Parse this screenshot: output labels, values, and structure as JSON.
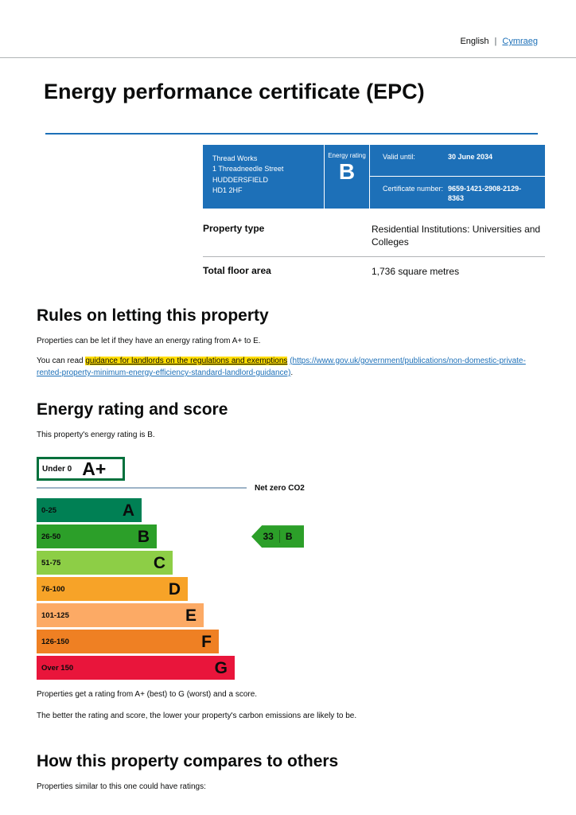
{
  "header": {
    "language_current": "English",
    "language_separator": "|",
    "language_link": "Cymraeg"
  },
  "page": {
    "title": "Energy performance certificate (EPC)"
  },
  "summary": {
    "address_lines": [
      "Thread Works",
      "1 Threadneedle Street",
      "HUDDERSFIELD",
      "HD1 2HF"
    ],
    "energy_rating_label": "Energy rating",
    "energy_rating": "B",
    "valid_until_label": "Valid until:",
    "valid_until": "30 June 2034",
    "certificate_number_label": "Certificate number:",
    "certificate_number": "9659-1421-2908-2129-8363",
    "property_type_label": "Property type",
    "property_type": "Residential Institutions: Universities and Colleges",
    "floor_area_label": "Total floor area",
    "floor_area": "1,736 square metres"
  },
  "rules": {
    "heading": "Rules on letting this property",
    "para1": "Properties can be let if they have an energy rating from A+ to E.",
    "para2_prefix": "You can read ",
    "link_text": "guidance for landlords on the regulations and exemptions",
    "link_url": "(https://www.gov.uk/government/publications/non-domestic-private-rented-property-minimum-energy-efficiency-standard-landlord-guidance)",
    "para2_suffix": "."
  },
  "rating": {
    "heading": "Energy rating and score",
    "intro": "This property's energy rating is B.",
    "footnote1": "Properties get a rating from A+ (best) to G (worst) and a score.",
    "footnote2": "The better the rating and score, the lower your property's carbon emissions are likely to be."
  },
  "chart_data": {
    "type": "bar",
    "orientation": "horizontal",
    "title": "Energy rating and score",
    "net_zero_label": "Net zero CO2",
    "bands": [
      {
        "range": "Under 0",
        "letter": "A+",
        "color": "#ffffff",
        "border_color": "#00703c"
      },
      {
        "range": "0-25",
        "letter": "A",
        "color": "#008054"
      },
      {
        "range": "26-50",
        "letter": "B",
        "color": "#2c9f29"
      },
      {
        "range": "51-75",
        "letter": "C",
        "color": "#8dce46"
      },
      {
        "range": "76-100",
        "letter": "D",
        "color": "#f7a328"
      },
      {
        "range": "101-125",
        "letter": "E",
        "color": "#fcaa65"
      },
      {
        "range": "126-150",
        "letter": "F",
        "color": "#ef8023"
      },
      {
        "range": "Over 150",
        "letter": "G",
        "color": "#e9153b"
      }
    ],
    "current_rating": {
      "score": "33",
      "letter": "B",
      "color": "#2c9f29"
    }
  },
  "compare": {
    "heading": "How this property compares to others",
    "intro": "Properties similar to this one could have ratings:"
  }
}
